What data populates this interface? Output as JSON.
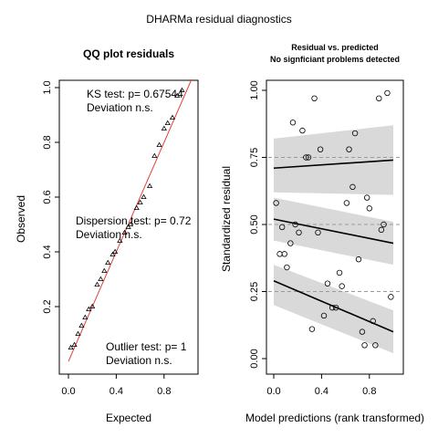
{
  "title": "DHARMa residual diagnostics",
  "chart_data": [
    {
      "type": "scatter",
      "title": "QQ plot residuals",
      "xlabel": "Expected",
      "ylabel": "Observed",
      "xlim": [
        0,
        1
      ],
      "ylim": [
        0,
        1
      ],
      "xticks": [
        "0.0",
        "0.4",
        "0.8"
      ],
      "xtick_values": [
        0,
        0.4,
        0.8
      ],
      "yticks": [
        "0.2",
        "0.4",
        "0.6",
        "0.8",
        "1.0"
      ],
      "ytick_values": [
        0.2,
        0.4,
        0.6,
        0.8,
        1.0
      ],
      "marker": "triangle",
      "reference_line": {
        "from": [
          0,
          0
        ],
        "to": [
          1,
          1
        ],
        "color": "#e0403a"
      },
      "points": [
        [
          0.02,
          0.05
        ],
        [
          0.05,
          0.06
        ],
        [
          0.08,
          0.1
        ],
        [
          0.11,
          0.13
        ],
        [
          0.14,
          0.16
        ],
        [
          0.17,
          0.19
        ],
        [
          0.2,
          0.2
        ],
        [
          0.24,
          0.28
        ],
        [
          0.27,
          0.3
        ],
        [
          0.3,
          0.33
        ],
        [
          0.33,
          0.36
        ],
        [
          0.37,
          0.39
        ],
        [
          0.39,
          0.4
        ],
        [
          0.43,
          0.44
        ],
        [
          0.47,
          0.47
        ],
        [
          0.5,
          0.49
        ],
        [
          0.52,
          0.5
        ],
        [
          0.57,
          0.56
        ],
        [
          0.6,
          0.58
        ],
        [
          0.63,
          0.6
        ],
        [
          0.68,
          0.64
        ],
        [
          0.72,
          0.75
        ],
        [
          0.76,
          0.79
        ],
        [
          0.8,
          0.85
        ],
        [
          0.83,
          0.87
        ],
        [
          0.87,
          0.89
        ],
        [
          0.91,
          0.97
        ],
        [
          0.95,
          0.99
        ]
      ],
      "annotations": {
        "ks": {
          "line1": "KS test: p= 0.67544",
          "line2": "Deviation  n.s."
        },
        "dispersion": {
          "line1": "Dispersion test: p= 0.72",
          "line2": "Deviation  n.s."
        },
        "outlier": {
          "line1": "Outlier test: p= 1",
          "line2": "Deviation  n.s."
        }
      }
    },
    {
      "type": "scatter",
      "title": "Residual vs. predicted",
      "subtitle": "No signficiant problems detected",
      "xlabel": "Model predictions (rank transformed)",
      "ylabel": "Standardized residual",
      "xlim": [
        0,
        1
      ],
      "ylim": [
        0,
        1
      ],
      "xticks": [
        "0.0",
        "0.4",
        "0.8"
      ],
      "xtick_values": [
        0,
        0.4,
        0.8
      ],
      "yticks": [
        "0.00",
        "0.25",
        "0.50",
        "0.75",
        "1.00"
      ],
      "ytick_values": [
        0,
        0.25,
        0.5,
        0.75,
        1.0
      ],
      "marker": "circle",
      "reference_lines_y": [
        0.25,
        0.5,
        0.75
      ],
      "quantile_fits": [
        {
          "quantile": 0.25,
          "x": [
            0,
            1
          ],
          "y": [
            0.29,
            0.1
          ],
          "band_upper": [
            0.35,
            0.18
          ],
          "band_lower": [
            0.2,
            0.02
          ]
        },
        {
          "quantile": 0.5,
          "x": [
            0,
            1
          ],
          "y": [
            0.52,
            0.43
          ],
          "band_upper": [
            0.6,
            0.51
          ],
          "band_lower": [
            0.44,
            0.35
          ]
        },
        {
          "quantile": 0.75,
          "x": [
            0,
            1
          ],
          "y": [
            0.71,
            0.74
          ],
          "band_upper": [
            0.82,
            0.87
          ],
          "band_lower": [
            0.62,
            0.61
          ]
        }
      ],
      "points": [
        [
          0.02,
          0.58
        ],
        [
          0.05,
          0.39
        ],
        [
          0.07,
          0.49
        ],
        [
          0.09,
          0.39
        ],
        [
          0.11,
          0.34
        ],
        [
          0.14,
          0.43
        ],
        [
          0.16,
          0.88
        ],
        [
          0.18,
          0.5
        ],
        [
          0.21,
          0.47
        ],
        [
          0.24,
          0.85
        ],
        [
          0.27,
          0.75
        ],
        [
          0.29,
          0.75
        ],
        [
          0.32,
          0.11
        ],
        [
          0.34,
          0.97
        ],
        [
          0.37,
          0.47
        ],
        [
          0.39,
          0.78
        ],
        [
          0.42,
          0.16
        ],
        [
          0.45,
          0.28
        ],
        [
          0.49,
          0.19
        ],
        [
          0.52,
          0.19
        ],
        [
          0.55,
          0.32
        ],
        [
          0.57,
          0.27
        ],
        [
          0.61,
          0.58
        ],
        [
          0.63,
          0.78
        ],
        [
          0.66,
          0.64
        ],
        [
          0.68,
          0.84
        ],
        [
          0.71,
          0.37
        ],
        [
          0.74,
          0.1
        ],
        [
          0.76,
          0.05
        ],
        [
          0.78,
          0.6
        ],
        [
          0.8,
          0.56
        ],
        [
          0.83,
          0.14
        ],
        [
          0.85,
          0.05
        ],
        [
          0.88,
          0.97
        ],
        [
          0.9,
          0.48
        ],
        [
          0.92,
          0.5
        ],
        [
          0.95,
          0.99
        ],
        [
          0.98,
          0.23
        ]
      ]
    }
  ]
}
